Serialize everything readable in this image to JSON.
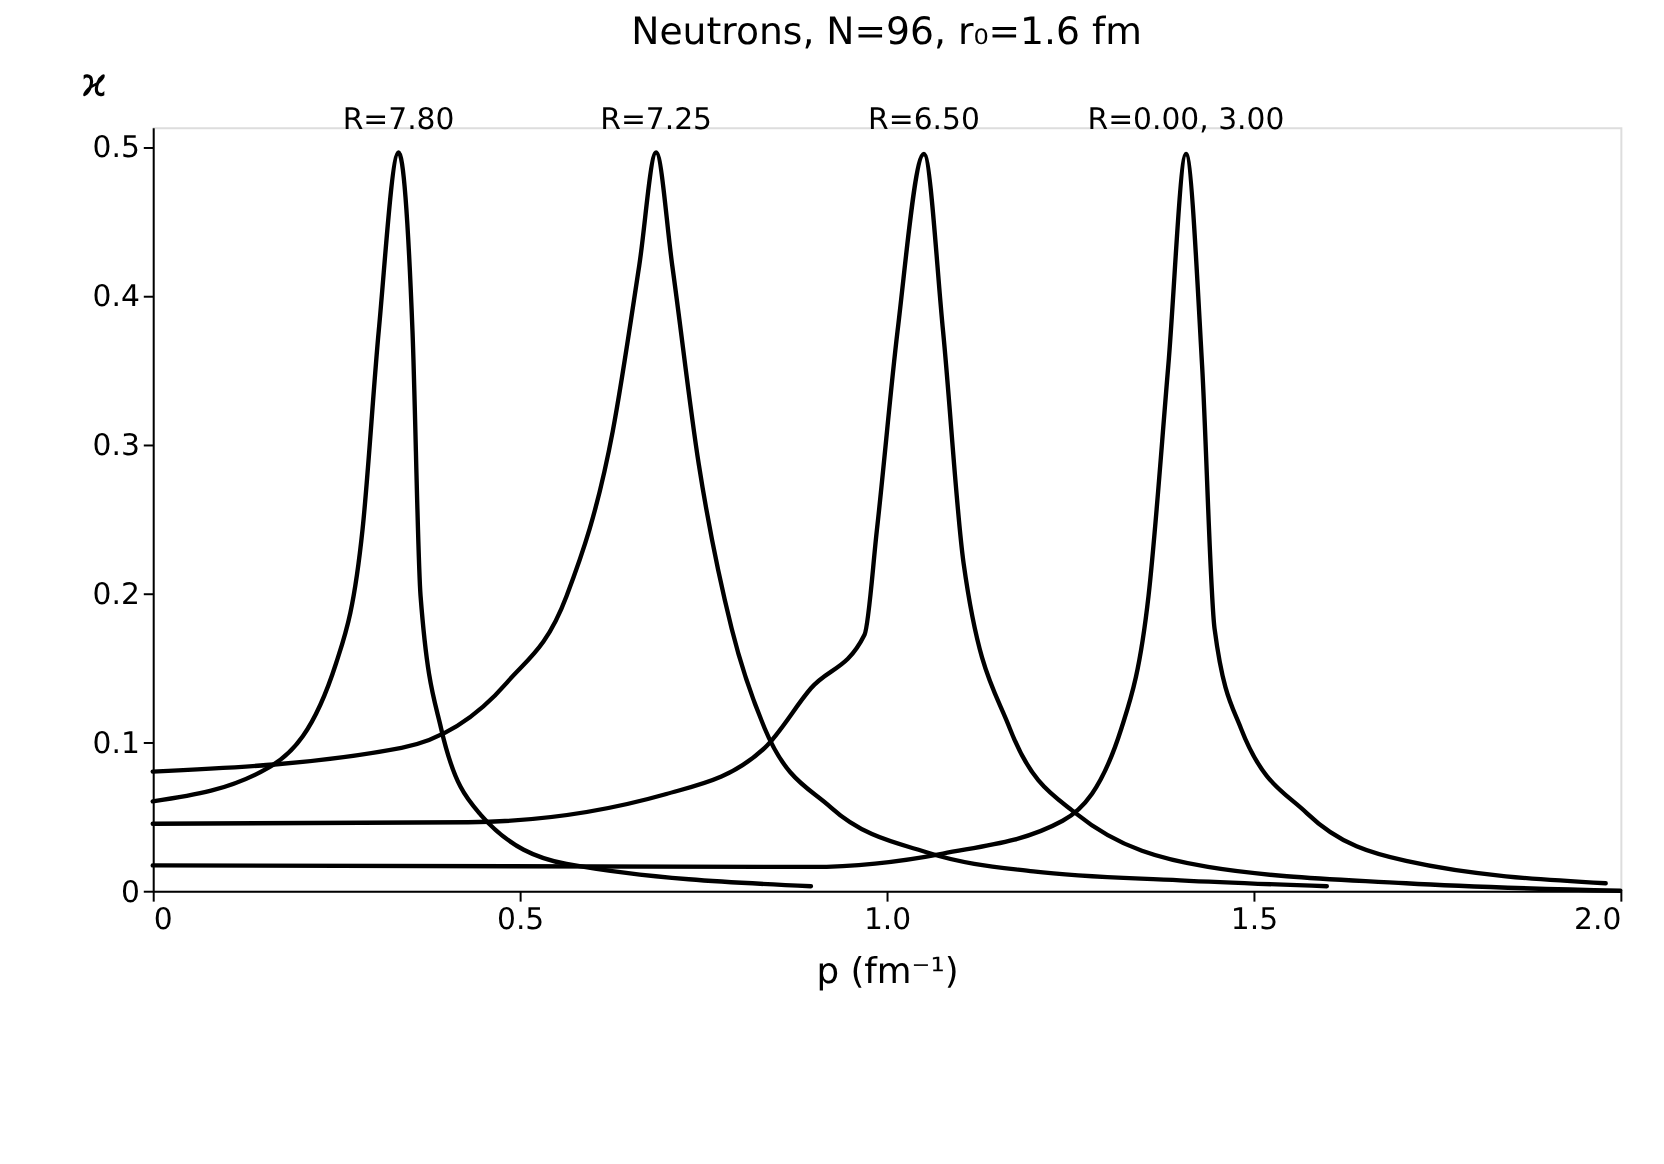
{
  "chart_data": {
    "type": "line",
    "title": "Neutrons, N=96, r₀=1.6 fm",
    "xlabel": "p (fm⁻¹)",
    "ylabel": "ϰ",
    "xlim": [
      0,
      2.0
    ],
    "ylim": [
      0,
      0.513
    ],
    "xticks": [
      0,
      0.5,
      {
        "value": 1.0,
        "label": "1.0"
      },
      1.5,
      {
        "value": 2.0,
        "label": "2.0"
      }
    ],
    "yticks": [
      0,
      0.1,
      0.2,
      0.3,
      0.4,
      0.5
    ],
    "grid": false,
    "legend": false,
    "marker": "none",
    "line_style": "solid",
    "annotations": [
      {
        "text": "R=7.80",
        "x": 0.335,
        "y": 0.5
      },
      {
        "text": "R=7.25",
        "x": 0.686,
        "y": 0.5
      },
      {
        "text": "R=6.50",
        "x": 1.051,
        "y": 0.5
      },
      {
        "text": "R=0.00, 3.00",
        "x": 1.408,
        "y": 0.5
      }
    ],
    "series": [
      {
        "color": "#000000",
        "x": [
          0,
          0.159,
          0.25,
          0.286,
          0.308,
          0.335,
          0.354,
          0.365,
          0.393,
          0.447,
          0.564,
          0.897
        ],
        "values": [
          0.06,
          0.083,
          0.153,
          0.243,
          0.376,
          0.496,
          0.376,
          0.198,
          0.109,
          0.051,
          0.018,
          0.003
        ]
      },
      {
        "color": "#000000",
        "x": [
          0,
          0.339,
          0.483,
          0.564,
          0.627,
          0.663,
          0.686,
          0.708,
          0.744,
          0.789,
          0.834,
          0.924,
          1.06,
          1.2,
          1.4,
          1.6
        ],
        "values": [
          0.08,
          0.096,
          0.14,
          0.198,
          0.309,
          0.42,
          0.496,
          0.42,
          0.287,
          0.176,
          0.109,
          0.056,
          0.025,
          0.013,
          0.007,
          0.003
        ]
      },
      {
        "color": "#000000",
        "x": [
          0,
          0.43,
          0.7,
          0.834,
          0.897,
          0.97,
          0.987,
          1.015,
          1.051,
          1.077,
          1.105,
          1.168,
          1.258,
          1.438,
          1.708,
          2.0
        ],
        "values": [
          0.045,
          0.046,
          0.065,
          0.096,
          0.136,
          0.172,
          0.243,
          0.376,
          0.495,
          0.376,
          0.22,
          0.109,
          0.052,
          0.016,
          0.005,
          0.0
        ]
      },
      {
        "color": "#000000",
        "x": [
          0,
          0.897,
          1.077,
          1.24,
          1.32,
          1.357,
          1.384,
          1.408,
          1.43,
          1.447,
          1.483,
          1.573,
          1.708,
          1.98
        ],
        "values": [
          0.017,
          0.016,
          0.025,
          0.047,
          0.109,
          0.198,
          0.353,
          0.495,
          0.353,
          0.176,
          0.109,
          0.052,
          0.02,
          0.005
        ]
      }
    ]
  }
}
